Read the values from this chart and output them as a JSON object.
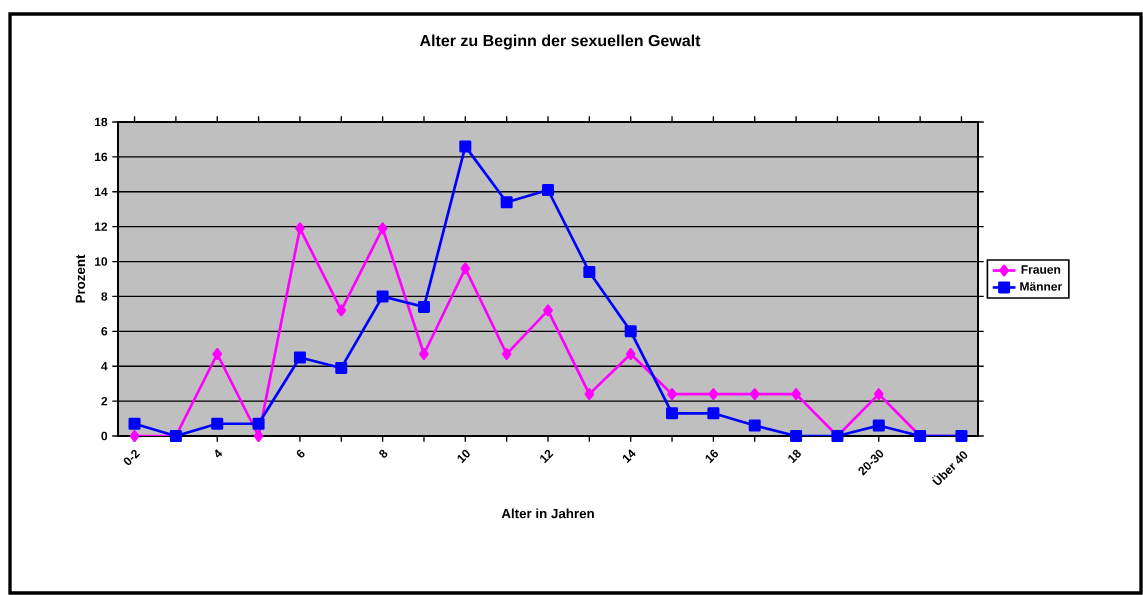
{
  "chart_data": {
    "type": "line",
    "title": "Alter zu Beginn der sexuellen Gewalt",
    "xlabel": "Alter in Jahren",
    "ylabel": "Prozent",
    "categories": [
      "0-2",
      null,
      "4",
      null,
      "6",
      null,
      "8",
      null,
      "10",
      null,
      "12",
      null,
      "14",
      null,
      "16",
      null,
      "18",
      null,
      "20-30",
      null,
      "Über 40"
    ],
    "series": [
      {
        "name": "Frauen",
        "color": "#ff00ff",
        "marker": "diamond",
        "values": [
          0,
          0,
          4.7,
          0,
          11.9,
          7.2,
          11.9,
          4.7,
          9.6,
          4.7,
          7.2,
          2.4,
          4.7,
          2.4,
          2.4,
          2.4,
          2.4,
          0,
          2.4,
          0,
          0
        ]
      },
      {
        "name": "Männer",
        "color": "#0000ff",
        "marker": "square",
        "values": [
          0.7,
          0,
          0.7,
          0.7,
          4.5,
          3.9,
          8,
          7.4,
          16.6,
          13.4,
          14.1,
          9.4,
          6,
          1.3,
          1.3,
          0.6,
          0,
          0,
          0.6,
          0,
          0
        ]
      }
    ],
    "ylim": [
      0,
      18
    ],
    "yticks": [
      0,
      2,
      4,
      6,
      8,
      10,
      12,
      14,
      16,
      18
    ],
    "grid": "y",
    "legend": "right",
    "line_style": "solid"
  }
}
